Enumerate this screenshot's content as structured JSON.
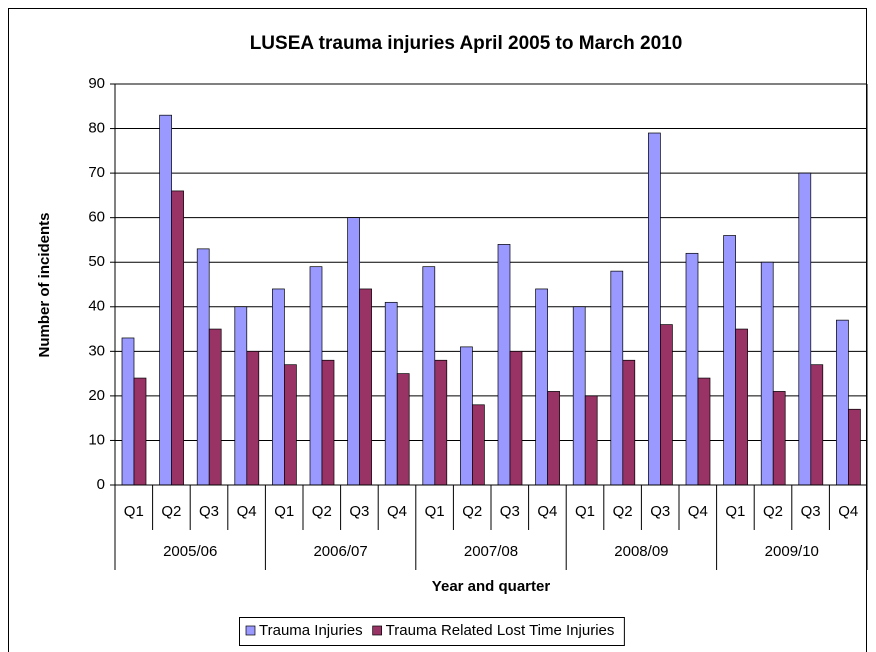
{
  "chart_data": {
    "type": "bar",
    "title": "LUSEA trauma injuries April 2005 to March 2010",
    "y_label": "Number of incidents",
    "x_label": "Year and quarter",
    "categories": [
      "Q1",
      "Q2",
      "Q3",
      "Q4",
      "Q1",
      "Q2",
      "Q3",
      "Q4",
      "Q1",
      "Q2",
      "Q3",
      "Q4",
      "Q1",
      "Q2",
      "Q3",
      "Q4",
      "Q1",
      "Q2",
      "Q3",
      "Q4"
    ],
    "groups": [
      "2005/06",
      "2006/07",
      "2007/08",
      "2008/09",
      "2009/10"
    ],
    "series": [
      {
        "name": "Trauma Injuries",
        "color": "#9999ff",
        "values": [
          33,
          83,
          53,
          40,
          44,
          49,
          60,
          41,
          49,
          31,
          54,
          44,
          40,
          48,
          79,
          52,
          56,
          50,
          70,
          37
        ]
      },
      {
        "name": "Trauma Related Lost Time Injuries",
        "color": "#993366",
        "values": [
          24,
          66,
          35,
          30,
          27,
          28,
          44,
          25,
          28,
          18,
          30,
          21,
          20,
          28,
          36,
          24,
          35,
          21,
          27,
          17
        ]
      }
    ],
    "ylim": [
      0,
      90
    ],
    "yticks": [
      0,
      10,
      20,
      30,
      40,
      50,
      60,
      70,
      80,
      90
    ],
    "grid": true,
    "legend": "bottom"
  }
}
